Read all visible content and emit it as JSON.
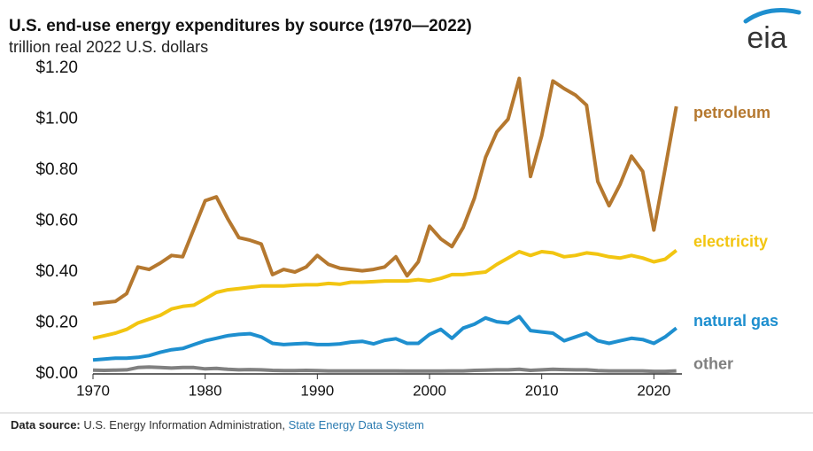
{
  "chart_data": {
    "type": "line",
    "title": "U.S. end-use energy expenditures by source (1970—2022)",
    "subtitle": "trillion real 2022 U.S. dollars",
    "logo": "eia",
    "source_label": "Data source:",
    "source_text": "U.S. Energy Information Administration,",
    "source_link": "State Energy Data System",
    "x": [
      1970,
      1971,
      1972,
      1973,
      1974,
      1975,
      1976,
      1977,
      1978,
      1979,
      1980,
      1981,
      1982,
      1983,
      1984,
      1985,
      1986,
      1987,
      1988,
      1989,
      1990,
      1991,
      1992,
      1993,
      1994,
      1995,
      1996,
      1997,
      1998,
      1999,
      2000,
      2001,
      2002,
      2003,
      2004,
      2005,
      2006,
      2007,
      2008,
      2009,
      2010,
      2011,
      2012,
      2013,
      2014,
      2015,
      2016,
      2017,
      2018,
      2019,
      2020,
      2021,
      2022
    ],
    "xlim": [
      1970,
      2022.5
    ],
    "xticks": [
      1970,
      1980,
      1990,
      2000,
      2010,
      2020
    ],
    "ylim": [
      0,
      1.2
    ],
    "yticks": [
      {
        "value": 0,
        "label": "$0.00"
      },
      {
        "value": 0.2,
        "label": "$0.20"
      },
      {
        "value": 0.4,
        "label": "$0.40"
      },
      {
        "value": 0.6,
        "label": "$0.60"
      },
      {
        "value": 0.8,
        "label": "$0.80"
      },
      {
        "value": 1.0,
        "label": "$1.00"
      },
      {
        "value": 1.2,
        "label": "$1.20"
      }
    ],
    "grid": false,
    "series": [
      {
        "name": "petroleum",
        "color": "#b5782f",
        "values": [
          0.275,
          0.28,
          0.285,
          0.315,
          0.42,
          0.41,
          0.435,
          0.465,
          0.46,
          0.57,
          0.68,
          0.695,
          0.61,
          0.535,
          0.525,
          0.51,
          0.39,
          0.41,
          0.4,
          0.42,
          0.465,
          0.43,
          0.415,
          0.41,
          0.405,
          0.41,
          0.42,
          0.46,
          0.385,
          0.44,
          0.58,
          0.53,
          0.5,
          0.575,
          0.69,
          0.85,
          0.95,
          1.0,
          1.16,
          0.775,
          0.935,
          1.15,
          1.12,
          1.095,
          1.055,
          0.755,
          0.66,
          0.745,
          0.855,
          0.795,
          0.565,
          0.805,
          1.05
        ]
      },
      {
        "name": "electricity",
        "color": "#f2c511",
        "values": [
          0.14,
          0.15,
          0.16,
          0.175,
          0.2,
          0.215,
          0.23,
          0.255,
          0.265,
          0.27,
          0.295,
          0.32,
          0.33,
          0.335,
          0.34,
          0.345,
          0.345,
          0.345,
          0.348,
          0.35,
          0.35,
          0.355,
          0.352,
          0.36,
          0.36,
          0.362,
          0.365,
          0.365,
          0.365,
          0.37,
          0.365,
          0.375,
          0.39,
          0.39,
          0.395,
          0.4,
          0.43,
          0.455,
          0.48,
          0.465,
          0.48,
          0.475,
          0.46,
          0.465,
          0.475,
          0.47,
          0.46,
          0.455,
          0.465,
          0.455,
          0.44,
          0.45,
          0.485
        ]
      },
      {
        "name": "natural gas",
        "color": "#1e8fcf",
        "values": [
          0.055,
          0.058,
          0.062,
          0.062,
          0.065,
          0.072,
          0.085,
          0.095,
          0.1,
          0.115,
          0.13,
          0.14,
          0.15,
          0.155,
          0.158,
          0.145,
          0.12,
          0.115,
          0.118,
          0.12,
          0.115,
          0.115,
          0.118,
          0.125,
          0.128,
          0.118,
          0.132,
          0.138,
          0.12,
          0.12,
          0.155,
          0.175,
          0.14,
          0.18,
          0.195,
          0.22,
          0.205,
          0.2,
          0.225,
          0.17,
          0.165,
          0.16,
          0.13,
          0.145,
          0.16,
          0.13,
          0.12,
          0.13,
          0.14,
          0.135,
          0.12,
          0.145,
          0.18
        ]
      },
      {
        "name": "other",
        "color": "#808080",
        "values": [
          0.015,
          0.014,
          0.015,
          0.016,
          0.025,
          0.027,
          0.025,
          0.023,
          0.025,
          0.025,
          0.02,
          0.022,
          0.018,
          0.016,
          0.017,
          0.016,
          0.014,
          0.013,
          0.013,
          0.014,
          0.013,
          0.012,
          0.012,
          0.012,
          0.012,
          0.012,
          0.012,
          0.012,
          0.011,
          0.011,
          0.011,
          0.011,
          0.012,
          0.012,
          0.014,
          0.015,
          0.016,
          0.016,
          0.018,
          0.014,
          0.016,
          0.018,
          0.017,
          0.016,
          0.016,
          0.013,
          0.012,
          0.012,
          0.012,
          0.012,
          0.01,
          0.01,
          0.012
        ]
      }
    ]
  }
}
